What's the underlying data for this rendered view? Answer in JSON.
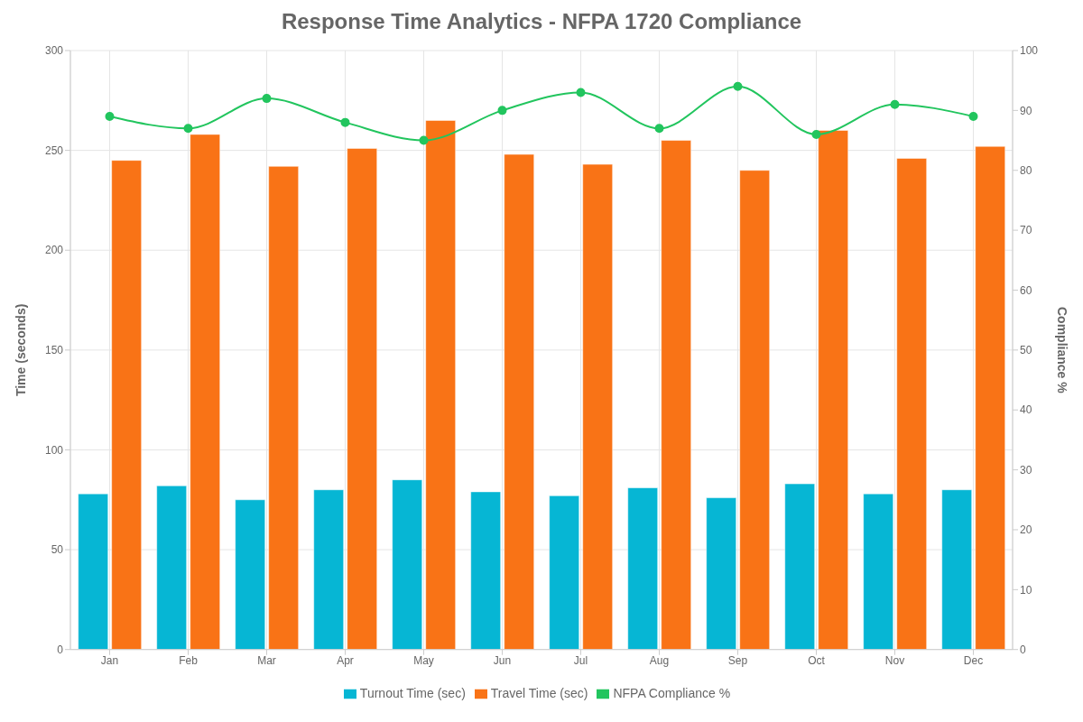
{
  "chart_data": {
    "type": "bar",
    "title": "Response Time Analytics - NFPA 1720 Compliance",
    "categories": [
      "Jan",
      "Feb",
      "Mar",
      "Apr",
      "May",
      "Jun",
      "Jul",
      "Aug",
      "Sep",
      "Oct",
      "Nov",
      "Dec"
    ],
    "series": [
      {
        "name": "Turnout Time (sec)",
        "color": "#06b6d4",
        "values": [
          78,
          82,
          75,
          80,
          85,
          79,
          77,
          81,
          76,
          83,
          78,
          80
        ]
      },
      {
        "name": "Travel Time (sec)",
        "color": "#f97316",
        "values": [
          245,
          258,
          242,
          251,
          265,
          248,
          243,
          255,
          240,
          260,
          246,
          252
        ]
      },
      {
        "name": "NFPA Compliance %",
        "type": "line",
        "axis": "y2",
        "color": "#22c55e",
        "values": [
          89,
          87,
          92,
          88,
          85,
          90,
          93,
          87,
          94,
          86,
          91,
          89
        ]
      }
    ],
    "ylabel": "Time (seconds)",
    "y2label": "Compliance %",
    "ylim": [
      0,
      300
    ],
    "yticks": [
      0,
      50,
      100,
      150,
      200,
      250,
      300
    ],
    "y2lim": [
      0,
      100
    ],
    "y2ticks": [
      0,
      10,
      20,
      30,
      40,
      50,
      60,
      70,
      80,
      90,
      100
    ],
    "grid": true,
    "legend": "bottom",
    "marker": "circle",
    "line_style": "solid"
  }
}
